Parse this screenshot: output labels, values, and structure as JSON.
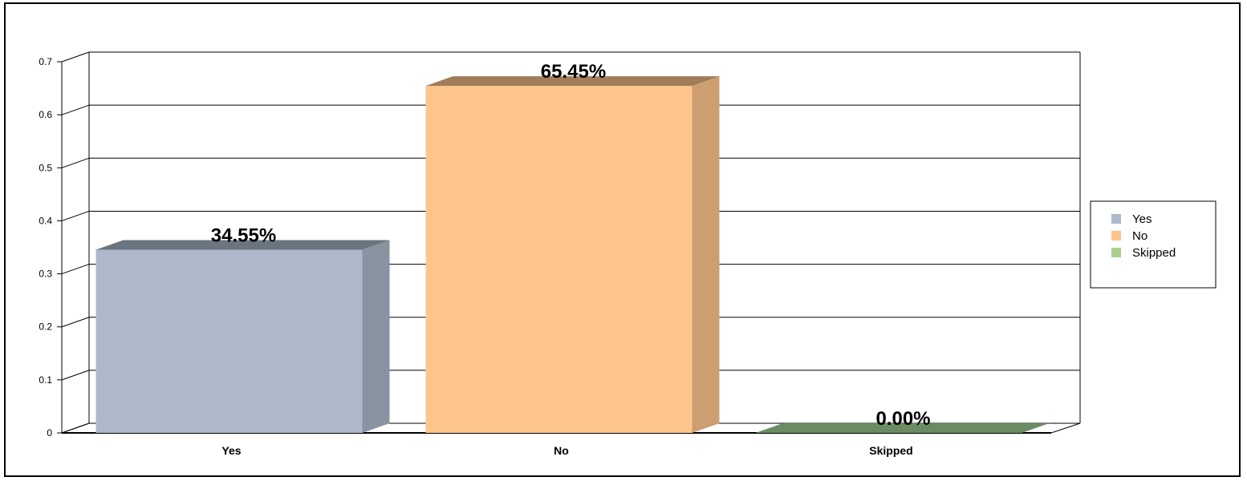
{
  "chart_data": {
    "type": "bar",
    "style": "3d",
    "categories": [
      "Yes",
      "No",
      "Skipped"
    ],
    "values": [
      0.3455,
      0.6545,
      0.0
    ],
    "data_labels": [
      "34.55%",
      "65.45%",
      "0.00%"
    ],
    "ylim": [
      0,
      0.7
    ],
    "yticks": [
      "0",
      "0.1",
      "0.2",
      "0.3",
      "0.4",
      "0.5",
      "0.6",
      "0.7"
    ],
    "grid": true,
    "legend": {
      "position": "right",
      "entries": [
        "Yes",
        "No",
        "Skipped"
      ]
    },
    "colors": {
      "Yes": {
        "front": "#adb9ca",
        "side": "#8993a2",
        "top": "#6b7580"
      },
      "No": {
        "front": "#fdc58c",
        "side": "#cc9e70",
        "top": "#a07c58"
      },
      "Skipped": {
        "front": "#a9d08e",
        "side": "#87a672",
        "top": "#6b8c62"
      }
    }
  }
}
